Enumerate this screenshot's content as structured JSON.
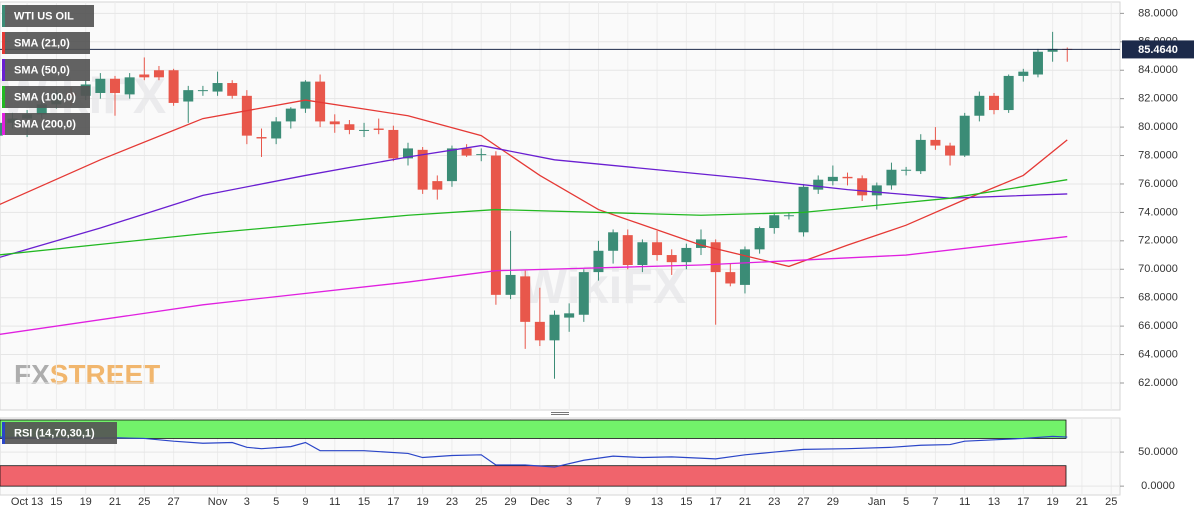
{
  "chart_data": [
    {
      "type": "candlestick",
      "title": "WTI US OIL",
      "x": [
        0,
        1,
        2,
        3,
        4,
        5,
        6,
        7,
        8,
        9,
        10,
        11,
        12,
        13,
        14,
        15,
        16,
        17,
        18,
        19,
        20,
        21,
        22,
        23,
        24,
        25,
        26,
        27,
        28,
        29,
        30,
        31,
        32,
        33,
        34,
        35,
        36,
        37,
        38,
        39,
        40,
        41,
        42,
        43,
        44,
        45,
        46,
        47,
        48,
        49,
        50,
        51,
        52,
        53,
        54,
        55,
        56,
        57,
        58,
        59,
        60,
        61,
        62,
        63,
        64,
        65,
        66,
        67,
        68,
        69,
        70,
        71,
        72,
        73
      ],
      "open": [
        79.4,
        80.3,
        80.6,
        80.9,
        81.6,
        82.4,
        82.2,
        82.4,
        83.4,
        82.3,
        83.7,
        84.0,
        84.0,
        81.8,
        82.6,
        82.5,
        83.1,
        82.2,
        79.3,
        79.2,
        80.4,
        81.3,
        83.2,
        80.4,
        80.2,
        79.8,
        79.9,
        79.8,
        77.8,
        78.4,
        76.2,
        76.2,
        78.5,
        78.1,
        78.0,
        68.2,
        69.5,
        66.3,
        65.0,
        66.6,
        66.8,
        69.8,
        71.3,
        72.4,
        70.3,
        71.9,
        71.0,
        70.5,
        71.5,
        71.9,
        69.8,
        68.9,
        71.4,
        72.9,
        73.8,
        72.6,
        75.6,
        76.2,
        76.5,
        76.4,
        75.2,
        75.9,
        77.0,
        76.9,
        79.1,
        78.7,
        78.0,
        80.8,
        82.2,
        81.2,
        83.6,
        83.7,
        85.3,
        85.5
      ],
      "high": [
        80.5,
        81.0,
        81.2,
        81.9,
        82.6,
        82.8,
        83.3,
        83.8,
        83.6,
        83.8,
        84.9,
        84.3,
        84.1,
        82.9,
        82.9,
        83.9,
        83.3,
        82.6,
        79.9,
        80.7,
        81.4,
        83.3,
        83.7,
        80.9,
        80.5,
        80.3,
        80.6,
        80.1,
        78.9,
        78.6,
        76.6,
        78.7,
        78.8,
        78.5,
        78.3,
        72.7,
        69.9,
        68.7,
        67.1,
        67.6,
        70.0,
        72.0,
        72.8,
        72.8,
        72.1,
        72.7,
        71.4,
        71.8,
        72.8,
        72.1,
        70.4,
        71.6,
        73.0,
        74.0,
        74.0,
        76.0,
        76.6,
        77.3,
        76.8,
        76.6,
        76.1,
        77.5,
        77.2,
        79.5,
        80.0,
        78.9,
        81.0,
        82.5,
        82.4,
        83.7,
        84.1,
        85.5,
        86.7,
        85.6
      ],
      "low": [
        79.0,
        79.9,
        79.3,
        80.6,
        81.3,
        81.5,
        81.9,
        82.0,
        80.8,
        82.0,
        83.3,
        83.3,
        81.5,
        80.3,
        82.2,
        82.2,
        82.0,
        78.8,
        77.9,
        78.8,
        79.9,
        81.0,
        80.0,
        79.6,
        79.5,
        79.3,
        79.5,
        77.6,
        77.3,
        75.3,
        74.9,
        75.8,
        77.9,
        77.6,
        67.5,
        67.9,
        64.4,
        64.6,
        62.3,
        65.6,
        66.3,
        69.2,
        70.4,
        70.0,
        69.8,
        70.6,
        69.6,
        70.0,
        71.0,
        66.1,
        68.8,
        68.3,
        71.1,
        72.5,
        73.5,
        72.3,
        75.3,
        75.9,
        75.9,
        74.8,
        74.2,
        75.6,
        76.6,
        76.7,
        78.4,
        77.3,
        77.9,
        80.4,
        80.9,
        81.0,
        83.2,
        83.5,
        84.6,
        84.6
      ],
      "close": [
        80.3,
        80.6,
        80.9,
        81.6,
        82.4,
        82.2,
        83.0,
        83.4,
        82.4,
        83.5,
        83.5,
        83.5,
        81.7,
        82.6,
        82.6,
        83.1,
        82.2,
        79.4,
        79.2,
        80.4,
        81.3,
        83.2,
        80.4,
        80.2,
        79.8,
        79.8,
        79.8,
        77.8,
        78.5,
        75.6,
        75.6,
        78.5,
        78.0,
        78.1,
        68.2,
        69.6,
        66.3,
        65.0,
        66.8,
        66.9,
        69.8,
        71.3,
        72.6,
        70.3,
        71.9,
        71.0,
        70.5,
        71.5,
        72.1,
        69.8,
        69.0,
        71.4,
        72.9,
        73.8,
        73.8,
        75.8,
        76.3,
        76.5,
        76.4,
        75.2,
        75.9,
        77.0,
        77.0,
        79.1,
        78.7,
        78.0,
        80.8,
        82.2,
        81.2,
        83.6,
        83.9,
        85.3,
        85.5,
        85.464
      ],
      "up_color": "#3b8c76",
      "down_color": "#e8574b",
      "overlays": [
        {
          "name": "SMA (21,0)",
          "color": "#e53935",
          "x": [
            0,
            7,
            14,
            21,
            28,
            33,
            37,
            41,
            48,
            54,
            58,
            62,
            66,
            70,
            73
          ],
          "values": [
            74.5,
            77.7,
            80.6,
            81.9,
            80.8,
            79.4,
            76.6,
            74.2,
            71.7,
            70.2,
            71.7,
            73.1,
            74.9,
            76.6,
            79.1
          ]
        },
        {
          "name": "SMA (50,0)",
          "color": "#6a1fd1",
          "x": [
            0,
            7,
            14,
            21,
            28,
            33,
            38,
            45,
            51,
            58,
            65,
            73
          ],
          "values": [
            70.8,
            72.9,
            75.2,
            76.6,
            77.9,
            78.7,
            77.7,
            77.0,
            76.4,
            75.6,
            75.0,
            75.3
          ]
        },
        {
          "name": "SMA (100,0)",
          "color": "#22b822",
          "x": [
            0,
            14,
            28,
            34,
            48,
            55,
            65,
            73
          ],
          "values": [
            71.0,
            72.5,
            73.8,
            74.2,
            73.8,
            74.0,
            75.0,
            76.3
          ]
        },
        {
          "name": "SMA (200,0)",
          "color": "#e020e0",
          "x": [
            0,
            14,
            28,
            34,
            48,
            62,
            73
          ],
          "values": [
            65.4,
            67.5,
            69.1,
            69.9,
            70.3,
            71.0,
            72.3
          ]
        }
      ],
      "last_price": {
        "value": 85.464,
        "label": "85.4640"
      },
      "xlim": [
        0.15,
        76.6
      ],
      "xticks": [
        {
          "value": 2,
          "label": "Oct 13"
        },
        {
          "value": 4,
          "label": "15"
        },
        {
          "value": 6,
          "label": "19"
        },
        {
          "value": 8,
          "label": "21"
        },
        {
          "value": 10,
          "label": "25"
        },
        {
          "value": 12,
          "label": "27"
        },
        {
          "value": 15,
          "label": "Nov"
        },
        {
          "value": 17,
          "label": "3"
        },
        {
          "value": 19,
          "label": "5"
        },
        {
          "value": 21,
          "label": "9"
        },
        {
          "value": 23,
          "label": "11"
        },
        {
          "value": 25,
          "label": "15"
        },
        {
          "value": 27,
          "label": "17"
        },
        {
          "value": 29,
          "label": "19"
        },
        {
          "value": 31,
          "label": "23"
        },
        {
          "value": 33,
          "label": "25"
        },
        {
          "value": 35,
          "label": "29"
        },
        {
          "value": 37,
          "label": "Dec"
        },
        {
          "value": 39,
          "label": "3"
        },
        {
          "value": 41,
          "label": "7"
        },
        {
          "value": 43,
          "label": "9"
        },
        {
          "value": 45,
          "label": "13"
        },
        {
          "value": 47,
          "label": "15"
        },
        {
          "value": 49,
          "label": "17"
        },
        {
          "value": 51,
          "label": "21"
        },
        {
          "value": 53,
          "label": "23"
        },
        {
          "value": 55,
          "label": "27"
        },
        {
          "value": 57,
          "label": "29"
        },
        {
          "value": 60,
          "label": "Jan"
        },
        {
          "value": 62,
          "label": "5"
        },
        {
          "value": 64,
          "label": "7"
        },
        {
          "value": 66,
          "label": "11"
        },
        {
          "value": 68,
          "label": "13"
        },
        {
          "value": 70,
          "label": "17"
        },
        {
          "value": 72,
          "label": "19"
        },
        {
          "value": 74,
          "label": "21"
        },
        {
          "value": 76,
          "label": "25"
        }
      ],
      "ylim": [
        60.1,
        88.8
      ],
      "yticks": [
        {
          "value": 62,
          "label": "62.0000"
        },
        {
          "value": 64,
          "label": "64.0000"
        },
        {
          "value": 66,
          "label": "66.0000"
        },
        {
          "value": 68,
          "label": "68.0000"
        },
        {
          "value": 70,
          "label": "70.0000"
        },
        {
          "value": 72,
          "label": "72.0000"
        },
        {
          "value": 74,
          "label": "74.0000"
        },
        {
          "value": 76,
          "label": "76.0000"
        },
        {
          "value": 78,
          "label": "78.0000"
        },
        {
          "value": 80,
          "label": "80.0000"
        },
        {
          "value": 82,
          "label": "82.0000"
        },
        {
          "value": 84,
          "label": "84.0000"
        },
        {
          "value": 86,
          "label": "86.0000"
        },
        {
          "value": 88,
          "label": "88.0000"
        }
      ],
      "grid": true
    },
    {
      "type": "line",
      "series": [
        {
          "name": "RSI (14,70,30,1)",
          "color": "#2b46c8",
          "x": [
            0,
            4,
            8,
            10,
            12,
            14,
            16,
            17,
            18,
            20,
            21,
            22,
            25,
            28,
            29,
            31,
            33,
            34,
            36,
            38,
            40,
            42,
            44,
            46,
            49,
            51,
            53,
            55,
            58,
            61,
            63,
            65,
            66,
            68,
            70,
            72,
            73
          ],
          "values": [
            72,
            70,
            71,
            70,
            66,
            63,
            64,
            57,
            55,
            58,
            64,
            52,
            52,
            48,
            42,
            45,
            46,
            31,
            31,
            28,
            38,
            44,
            42,
            43,
            40,
            46,
            50,
            54,
            55,
            57,
            60,
            61,
            66,
            68,
            70,
            73,
            72
          ]
        }
      ],
      "overbought": 70,
      "oversold": 30,
      "overbought_color": "#72f26a",
      "oversold_color": "#f0646c",
      "ylim": [
        -13,
        100
      ],
      "yticks": [
        {
          "value": 0,
          "label": "0.0000"
        },
        {
          "value": 50,
          "label": "50.0000"
        }
      ],
      "grid": true
    }
  ],
  "watermark": {
    "brand_a": "FX",
    "brand_b": "STREET",
    "overlay": "WikiFX"
  }
}
